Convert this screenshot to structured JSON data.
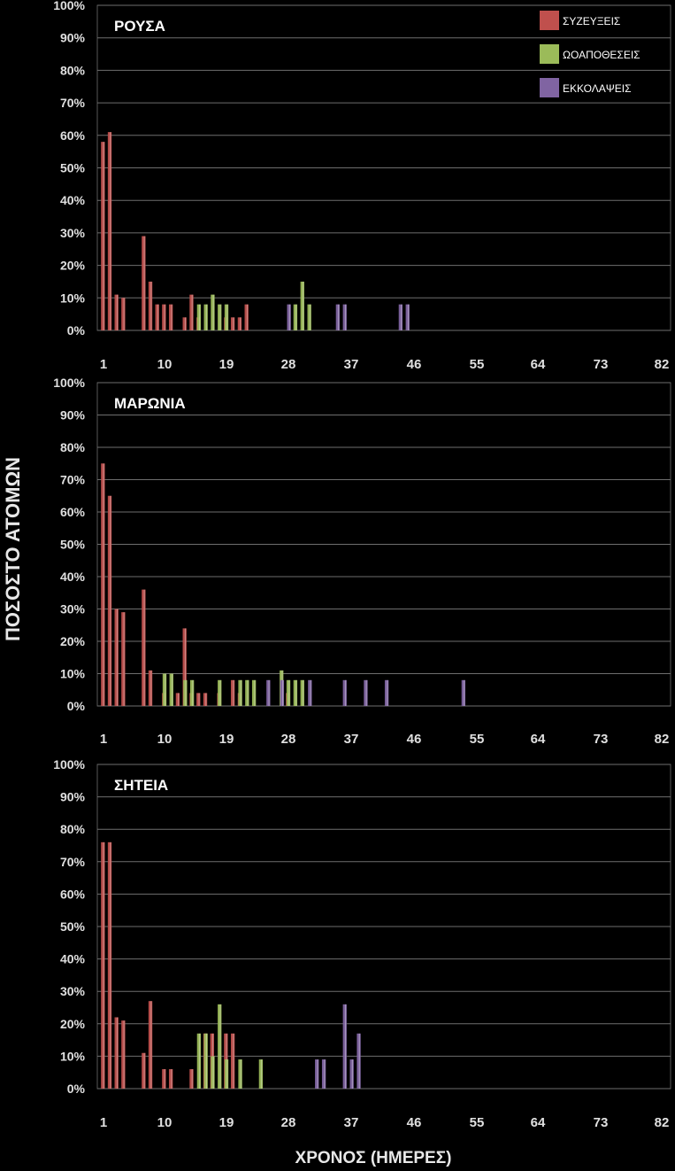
{
  "colors": {
    "ΣΥΖΕΥΞΕΙΣ": "#c0504d",
    "ΩΟΑΠΟΘΕΣΕΙΣ": "#9bbb59",
    "ΕΚΚΟΛΑΨΕΙΣ": "#8064a2"
  },
  "chart_data": {
    "type": "bar",
    "ylabel": "ΠΟΣΟΣΤΟ ΑΤΟΜΩΝ",
    "xlabel": "ΧΡΟΝΟΣ (ΗΜΕΡΕΣ)",
    "ylim": [
      0,
      100
    ],
    "xlim": [
      1,
      82
    ],
    "y_ticks": [
      "0%",
      "10%",
      "20%",
      "30%",
      "40%",
      "50%",
      "60%",
      "70%",
      "80%",
      "90%",
      "100%"
    ],
    "x_ticks": [
      "1",
      "10",
      "19",
      "28",
      "37",
      "46",
      "55",
      "64",
      "73",
      "82"
    ],
    "grid": true,
    "legend": {
      "placement": "top-right",
      "entries": [
        "ΣΥΖΕΥΞΕΙΣ",
        "ΩΟΑΠΟΘΕΣΕΙΣ",
        "ΕΚΚΟΛΑΨΕΙΣ"
      ]
    },
    "panels": [
      {
        "title": "ΡΟΥΣΑ",
        "series": [
          {
            "name": "ΣΥΖΕΥΞΕΙΣ",
            "points": [
              [
                1,
                58
              ],
              [
                2,
                61
              ],
              [
                3,
                11
              ],
              [
                4,
                10
              ],
              [
                7,
                29
              ],
              [
                8,
                15
              ],
              [
                9,
                8
              ],
              [
                10,
                8
              ],
              [
                11,
                8
              ],
              [
                13,
                4
              ],
              [
                14,
                11
              ],
              [
                15,
                4
              ],
              [
                19,
                4
              ],
              [
                20,
                4
              ],
              [
                21,
                4
              ],
              [
                22,
                8
              ]
            ]
          },
          {
            "name": "ΩΟΑΠΟΘΕΣΕΙΣ",
            "points": [
              [
                15,
                8
              ],
              [
                16,
                8
              ],
              [
                17,
                11
              ],
              [
                18,
                8
              ],
              [
                19,
                8
              ],
              [
                29,
                8
              ],
              [
                30,
                15
              ],
              [
                31,
                8
              ]
            ]
          },
          {
            "name": "ΕΚΚΟΛΑΨΕΙΣ",
            "points": [
              [
                28,
                8
              ],
              [
                35,
                8
              ],
              [
                36,
                8
              ],
              [
                44,
                8
              ],
              [
                45,
                8
              ]
            ]
          }
        ]
      },
      {
        "title": "ΜΑΡΩΝΙΑ",
        "series": [
          {
            "name": "ΣΥΖΕΥΞΕΙΣ",
            "points": [
              [
                1,
                75
              ],
              [
                2,
                65
              ],
              [
                3,
                30
              ],
              [
                4,
                29
              ],
              [
                7,
                36
              ],
              [
                8,
                11
              ],
              [
                10,
                4
              ],
              [
                12,
                4
              ],
              [
                13,
                24
              ],
              [
                14,
                4
              ],
              [
                15,
                4
              ],
              [
                16,
                4
              ],
              [
                18,
                4
              ],
              [
                20,
                8
              ],
              [
                21,
                4
              ],
              [
                28,
                4
              ]
            ]
          },
          {
            "name": "ΩΟΑΠΟΘΕΣΕΙΣ",
            "points": [
              [
                10,
                10
              ],
              [
                11,
                10
              ],
              [
                13,
                8
              ],
              [
                14,
                8
              ],
              [
                18,
                8
              ],
              [
                21,
                8
              ],
              [
                22,
                8
              ],
              [
                23,
                8
              ],
              [
                27,
                11
              ],
              [
                28,
                8
              ],
              [
                29,
                8
              ],
              [
                30,
                8
              ]
            ]
          },
          {
            "name": "ΕΚΚΟΛΑΨΕΙΣ",
            "points": [
              [
                25,
                8
              ],
              [
                27,
                8
              ],
              [
                31,
                8
              ],
              [
                36,
                8
              ],
              [
                39,
                8
              ],
              [
                42,
                8
              ],
              [
                53,
                8
              ]
            ]
          }
        ]
      },
      {
        "title": "ΣΗΤΕΙΑ",
        "series": [
          {
            "name": "ΣΥΖΕΥΞΕΙΣ",
            "points": [
              [
                1,
                76
              ],
              [
                2,
                76
              ],
              [
                3,
                22
              ],
              [
                4,
                21
              ],
              [
                7,
                11
              ],
              [
                8,
                27
              ],
              [
                10,
                6
              ],
              [
                11,
                6
              ],
              [
                14,
                6
              ],
              [
                16,
                17
              ],
              [
                17,
                17
              ],
              [
                19,
                17
              ],
              [
                20,
                17
              ]
            ]
          },
          {
            "name": "ΩΟΑΠΟΘΕΣΕΙΣ",
            "points": [
              [
                15,
                17
              ],
              [
                16,
                17
              ],
              [
                17,
                10
              ],
              [
                18,
                26
              ],
              [
                19,
                9
              ],
              [
                21,
                9
              ],
              [
                24,
                9
              ]
            ]
          },
          {
            "name": "ΕΚΚΟΛΑΨΕΙΣ",
            "points": [
              [
                32,
                9
              ],
              [
                33,
                9
              ],
              [
                36,
                26
              ],
              [
                37,
                9
              ],
              [
                38,
                17
              ]
            ]
          }
        ]
      }
    ]
  }
}
